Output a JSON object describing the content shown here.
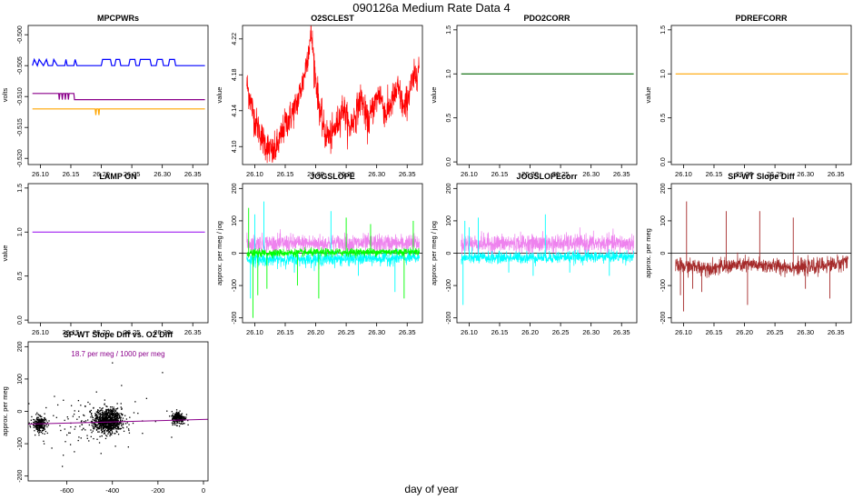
{
  "page": {
    "title": "090126a   Medium Rate Data 4",
    "xlabel": "day of year"
  },
  "chart_data": [
    {
      "id": "mpcpwrs",
      "type": "line",
      "title": "MPCPWRs",
      "ylabel": "volts",
      "xlim": [
        26.08,
        26.375
      ],
      "ylim": [
        -0.521,
        -0.4985
      ],
      "xticks": [
        "26.10",
        "26.15",
        "26.20",
        "26.25",
        "26.30",
        "26.35"
      ],
      "yticks": [
        "-0.500",
        "-0.505",
        "-0.510",
        "-0.515",
        "-0.520"
      ],
      "series": [
        {
          "color": "#0000ff",
          "values": [
            [
              26.087,
              -0.505
            ],
            [
              26.09,
              -0.504
            ],
            [
              26.095,
              -0.505
            ],
            [
              26.098,
              -0.504
            ],
            [
              26.105,
              -0.505
            ],
            [
              26.11,
              -0.504
            ],
            [
              26.113,
              -0.505
            ],
            [
              26.12,
              -0.505
            ],
            [
              26.122,
              -0.504
            ],
            [
              26.128,
              -0.505
            ],
            [
              26.14,
              -0.505
            ],
            [
              26.142,
              -0.504
            ],
            [
              26.144,
              -0.505
            ],
            [
              26.155,
              -0.505
            ],
            [
              26.157,
              -0.504
            ],
            [
              26.16,
              -0.505
            ],
            [
              26.2,
              -0.505
            ],
            [
              26.202,
              -0.504
            ],
            [
              26.215,
              -0.504
            ],
            [
              26.217,
              -0.505
            ],
            [
              26.222,
              -0.505
            ],
            [
              26.224,
              -0.504
            ],
            [
              26.23,
              -0.504
            ],
            [
              26.232,
              -0.505
            ],
            [
              26.245,
              -0.505
            ],
            [
              26.247,
              -0.504
            ],
            [
              26.255,
              -0.504
            ],
            [
              26.257,
              -0.505
            ],
            [
              26.262,
              -0.505
            ],
            [
              26.264,
              -0.504
            ],
            [
              26.28,
              -0.504
            ],
            [
              26.282,
              -0.505
            ],
            [
              26.29,
              -0.505
            ],
            [
              26.292,
              -0.504
            ],
            [
              26.3,
              -0.504
            ],
            [
              26.302,
              -0.505
            ],
            [
              26.31,
              -0.505
            ],
            [
              26.312,
              -0.504
            ],
            [
              26.32,
              -0.504
            ],
            [
              26.322,
              -0.505
            ],
            [
              26.37,
              -0.505
            ]
          ]
        },
        {
          "color": "#8b008b",
          "values": [
            [
              26.087,
              -0.5095
            ],
            [
              26.13,
              -0.5095
            ],
            [
              26.131,
              -0.5105
            ],
            [
              26.132,
              -0.5095
            ],
            [
              26.135,
              -0.5095
            ],
            [
              26.136,
              -0.5105
            ],
            [
              26.137,
              -0.5095
            ],
            [
              26.14,
              -0.5095
            ],
            [
              26.141,
              -0.5105
            ],
            [
              26.142,
              -0.5095
            ],
            [
              26.145,
              -0.5095
            ],
            [
              26.146,
              -0.5105
            ],
            [
              26.147,
              -0.5095
            ],
            [
              26.155,
              -0.5095
            ],
            [
              26.156,
              -0.5105
            ],
            [
              26.157,
              -0.5105
            ],
            [
              26.37,
              -0.5105
            ]
          ]
        },
        {
          "color": "#ffa500",
          "values": [
            [
              26.087,
              -0.512
            ],
            [
              26.19,
              -0.512
            ],
            [
              26.191,
              -0.513
            ],
            [
              26.192,
              -0.512
            ],
            [
              26.195,
              -0.512
            ],
            [
              26.196,
              -0.513
            ],
            [
              26.197,
              -0.512
            ],
            [
              26.37,
              -0.512
            ]
          ]
        }
      ]
    },
    {
      "id": "o2sclest",
      "type": "line",
      "title": "O2SCLEST",
      "ylabel": "value",
      "xlim": [
        26.08,
        26.375
      ],
      "ylim": [
        4.08,
        4.235
      ],
      "xticks": [
        "26.10",
        "26.15",
        "26.20",
        "26.25",
        "26.30",
        "26.35"
      ],
      "yticks": [
        "4.10",
        "4.14",
        "4.18",
        "4.22"
      ],
      "series": [
        {
          "color": "#ff0000",
          "noise": 0.009,
          "values": [
            [
              26.087,
              4.17
            ],
            [
              26.1,
              4.13
            ],
            [
              26.115,
              4.105
            ],
            [
              26.13,
              4.092
            ],
            [
              26.14,
              4.105
            ],
            [
              26.15,
              4.125
            ],
            [
              26.16,
              4.135
            ],
            [
              26.17,
              4.15
            ],
            [
              26.18,
              4.175
            ],
            [
              26.19,
              4.215
            ],
            [
              26.193,
              4.225
            ],
            [
              26.2,
              4.175
            ],
            [
              26.207,
              4.14
            ],
            [
              26.215,
              4.115
            ],
            [
              26.225,
              4.11
            ],
            [
              26.235,
              4.125
            ],
            [
              26.245,
              4.145
            ],
            [
              26.255,
              4.12
            ],
            [
              26.265,
              4.135
            ],
            [
              26.275,
              4.155
            ],
            [
              26.285,
              4.125
            ],
            [
              26.295,
              4.145
            ],
            [
              26.305,
              4.16
            ],
            [
              26.315,
              4.135
            ],
            [
              26.325,
              4.15
            ],
            [
              26.335,
              4.165
            ],
            [
              26.345,
              4.14
            ],
            [
              26.355,
              4.165
            ],
            [
              26.37,
              4.19
            ]
          ]
        }
      ]
    },
    {
      "id": "pdo2corr",
      "type": "line",
      "title": "PDO2CORR",
      "ylabel": "value",
      "xlim": [
        26.08,
        26.375
      ],
      "ylim": [
        -0.03,
        1.55
      ],
      "xticks": [
        "26.10",
        "26.15",
        "26.20",
        "26.25",
        "26.30",
        "26.35"
      ],
      "yticks": [
        "0.0",
        "0.5",
        "1.0",
        "1.5"
      ],
      "series": [
        {
          "color": "#006400",
          "values": [
            [
              26.087,
              1.0
            ],
            [
              26.37,
              1.0
            ]
          ]
        }
      ]
    },
    {
      "id": "pdrefcorr",
      "type": "line",
      "title": "PDREFCORR",
      "ylabel": "value",
      "xlim": [
        26.08,
        26.375
      ],
      "ylim": [
        -0.03,
        1.55
      ],
      "xticks": [
        "26.10",
        "26.15",
        "26.20",
        "26.25",
        "26.30",
        "26.35"
      ],
      "yticks": [
        "0.0",
        "0.5",
        "1.0",
        "1.5"
      ],
      "series": [
        {
          "color": "#ffa500",
          "values": [
            [
              26.087,
              1.0
            ],
            [
              26.37,
              1.0
            ]
          ]
        }
      ]
    },
    {
      "id": "lamp-on",
      "type": "line",
      "title": "LAMP ON",
      "ylabel": "value",
      "xlim": [
        26.08,
        26.375
      ],
      "ylim": [
        -0.03,
        1.55
      ],
      "xticks": [
        "26.10",
        "26.15",
        "26.20",
        "26.25",
        "26.30",
        "26.35"
      ],
      "yticks": [
        "0.0",
        "0.5",
        "1.0",
        "1.5"
      ],
      "series": [
        {
          "color": "#a020f0",
          "values": [
            [
              26.087,
              1.0
            ],
            [
              26.37,
              1.0
            ]
          ]
        }
      ]
    },
    {
      "id": "jogslope",
      "type": "line",
      "title": "JOGSLOPE",
      "ylabel": "approx. per meg / jog",
      "xlim": [
        26.08,
        26.375
      ],
      "ylim": [
        -215,
        215
      ],
      "xticks": [
        "26.10",
        "26.15",
        "26.20",
        "26.25",
        "26.30",
        "26.35"
      ],
      "yticks": [
        "-200",
        "-100",
        "0",
        "100",
        "200"
      ],
      "hline": 0,
      "series": [
        {
          "color": "#ee82ee",
          "noise": 14,
          "values": [
            [
              26.087,
              30
            ],
            [
              26.37,
              30
            ]
          ]
        },
        {
          "color": "#00ffff",
          "noise": 10,
          "values": [
            [
              26.087,
              -20
            ],
            [
              26.37,
              -15
            ]
          ],
          "spikes": [
            [
              26.093,
              -140
            ],
            [
              26.1,
              120
            ],
            [
              26.115,
              160
            ],
            [
              26.165,
              -60
            ],
            [
              26.205,
              -50
            ],
            [
              26.225,
              130
            ],
            [
              26.27,
              -70
            ],
            [
              26.33,
              -120
            ]
          ]
        },
        {
          "color": "#00ff00",
          "noise": 6,
          "values": [
            [
              26.087,
              0
            ],
            [
              26.37,
              5
            ]
          ],
          "spikes": [
            [
              26.09,
              140
            ],
            [
              26.097,
              -200
            ],
            [
              26.105,
              -130
            ],
            [
              26.12,
              -110
            ],
            [
              26.17,
              -100
            ],
            [
              26.205,
              -140
            ],
            [
              26.25,
              110
            ],
            [
              26.29,
              90
            ],
            [
              26.345,
              -140
            ],
            [
              26.36,
              100
            ]
          ]
        }
      ]
    },
    {
      "id": "jogslopecorr",
      "type": "line",
      "title": "JOGSLOPEcorr",
      "ylabel": "approx. per meg / jog",
      "xlim": [
        26.08,
        26.375
      ],
      "ylim": [
        -215,
        215
      ],
      "xticks": [
        "26.10",
        "26.15",
        "26.20",
        "26.25",
        "26.30",
        "26.35"
      ],
      "yticks": [
        "-200",
        "-100",
        "0",
        "100",
        "200"
      ],
      "hline": 0,
      "series": [
        {
          "color": "#ee82ee",
          "noise": 14,
          "values": [
            [
              26.087,
              30
            ],
            [
              26.37,
              30
            ]
          ]
        },
        {
          "color": "#00ffff",
          "noise": 9,
          "values": [
            [
              26.087,
              -15
            ],
            [
              26.37,
              -10
            ]
          ],
          "spikes": [
            [
              26.09,
              -160
            ],
            [
              26.093,
              100
            ],
            [
              26.1,
              80
            ],
            [
              26.115,
              110
            ],
            [
              26.165,
              -60
            ],
            [
              26.205,
              -70
            ],
            [
              26.225,
              120
            ],
            [
              26.265,
              -60
            ],
            [
              26.33,
              -70
            ]
          ]
        }
      ]
    },
    {
      "id": "sp-wt-slope-diff",
      "type": "line",
      "title": "SP-WT Slope Diff",
      "ylabel": "approx. per meg",
      "xlim": [
        26.08,
        26.375
      ],
      "ylim": [
        -215,
        215
      ],
      "xticks": [
        "26.10",
        "26.15",
        "26.20",
        "26.25",
        "26.30",
        "26.35"
      ],
      "yticks": [
        "-200",
        "-100",
        "0",
        "100",
        "200"
      ],
      "hline": 0,
      "series": [
        {
          "color": "#a52a2a",
          "noise": 12,
          "values": [
            [
              26.087,
              -40
            ],
            [
              26.15,
              -45
            ],
            [
              26.2,
              -35
            ],
            [
              26.3,
              -45
            ],
            [
              26.36,
              -30
            ],
            [
              26.37,
              -15
            ]
          ],
          "spikes": [
            [
              26.095,
              -130
            ],
            [
              26.1,
              -180
            ],
            [
              26.105,
              160
            ],
            [
              26.115,
              -110
            ],
            [
              26.13,
              -120
            ],
            [
              26.17,
              130
            ],
            [
              26.205,
              -160
            ],
            [
              26.225,
              130
            ],
            [
              26.28,
              110
            ],
            [
              26.3,
              -110
            ],
            [
              26.34,
              -140
            ]
          ]
        }
      ]
    },
    {
      "id": "sp-wt-vs-o2",
      "type": "scatter",
      "title": "SP-WT Slope Diff vs. O2 Diff",
      "ylabel": "approx. per meg",
      "annotation": "18.7 per meg / 1000 per meg",
      "xlim": [
        -770,
        20
      ],
      "ylim": [
        -215,
        215
      ],
      "xticks": [
        "-600",
        "-400",
        "-200",
        "0"
      ],
      "yticks": [
        "-200",
        "-100",
        "0",
        "100",
        "200"
      ],
      "clusters": [
        {
          "cx": -720,
          "cy": -40,
          "sx": 15,
          "sy": 12,
          "n": 260
        },
        {
          "cx": -420,
          "cy": -30,
          "sx": 30,
          "sy": 18,
          "n": 850
        },
        {
          "cx": -110,
          "cy": -20,
          "sx": 15,
          "sy": 10,
          "n": 230
        },
        {
          "cx": -500,
          "cy": -30,
          "sx": 110,
          "sy": 35,
          "n": 120
        }
      ],
      "outliers": [
        [
          -400,
          150
        ],
        [
          -620,
          -170
        ],
        [
          -470,
          60
        ],
        [
          -330,
          -110
        ],
        [
          -180,
          120
        ],
        [
          -250,
          40
        ],
        [
          -550,
          -90
        ],
        [
          -640,
          20
        ],
        [
          -300,
          30
        ],
        [
          -700,
          -100
        ],
        [
          -140,
          -80
        ],
        [
          -450,
          -130
        ],
        [
          -360,
          80
        ]
      ],
      "fit": {
        "color": "#8b008b",
        "slope": 0.0187,
        "intercept": -25
      }
    }
  ]
}
